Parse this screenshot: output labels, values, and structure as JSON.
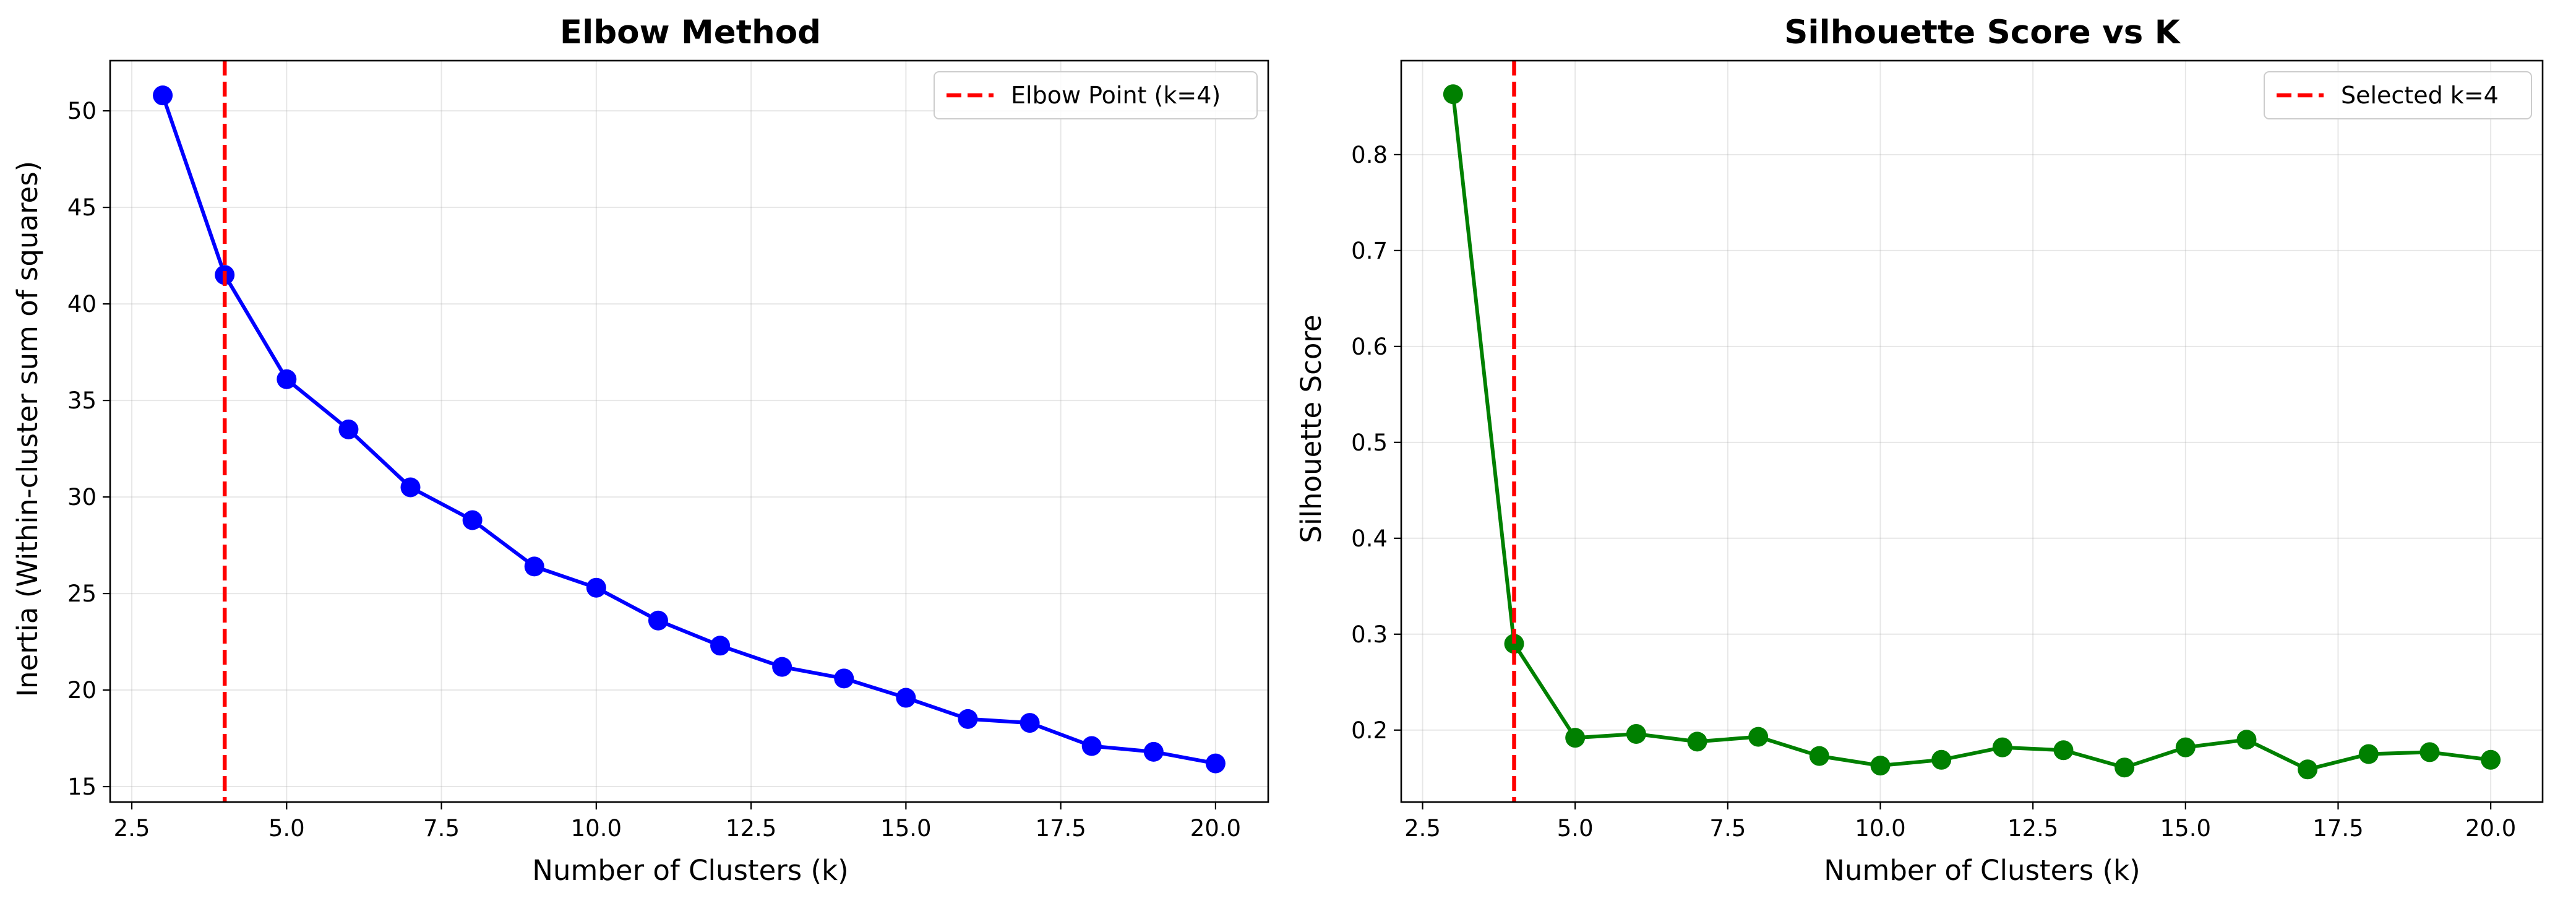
{
  "chart_data": [
    {
      "type": "line",
      "title": "Elbow Method",
      "xlabel": "Number of Clusters (k)",
      "ylabel": "Inertia (Within-cluster sum of squares)",
      "xlim": [
        2.15,
        20.85
      ],
      "ylim": [
        14.2,
        52.6
      ],
      "xticks": [
        2.5,
        5.0,
        7.5,
        10.0,
        12.5,
        15.0,
        17.5,
        20.0
      ],
      "xtick_labels": [
        "2.5",
        "5.0",
        "7.5",
        "10.0",
        "12.5",
        "15.0",
        "17.5",
        "20.0"
      ],
      "yticks": [
        15,
        20,
        25,
        30,
        35,
        40,
        45,
        50
      ],
      "ytick_labels": [
        "15",
        "20",
        "25",
        "30",
        "35",
        "40",
        "45",
        "50"
      ],
      "grid": true,
      "legend_position": "top-right",
      "series": [
        {
          "color": "#0000ff",
          "x": [
            3,
            4,
            5,
            6,
            7,
            8,
            9,
            10,
            11,
            12,
            13,
            14,
            15,
            16,
            17,
            18,
            19,
            20
          ],
          "y": [
            50.8,
            41.5,
            36.1,
            33.5,
            30.5,
            28.8,
            26.4,
            25.3,
            23.6,
            22.3,
            21.2,
            20.6,
            19.6,
            18.5,
            18.3,
            17.1,
            16.8,
            16.2
          ]
        }
      ],
      "vline": {
        "x": 4,
        "label": "Elbow Point (k=4)",
        "color": "#ff0000"
      }
    },
    {
      "type": "line",
      "title": "Silhouette Score vs K",
      "xlabel": "Number of Clusters (k)",
      "ylabel": "Silhouette Score",
      "xlim": [
        2.15,
        20.85
      ],
      "ylim": [
        0.125,
        0.898
      ],
      "xticks": [
        2.5,
        5.0,
        7.5,
        10.0,
        12.5,
        15.0,
        17.5,
        20.0
      ],
      "xtick_labels": [
        "2.5",
        "5.0",
        "7.5",
        "10.0",
        "12.5",
        "15.0",
        "17.5",
        "20.0"
      ],
      "yticks": [
        0.2,
        0.3,
        0.4,
        0.5,
        0.6,
        0.7,
        0.8
      ],
      "ytick_labels": [
        "0.2",
        "0.3",
        "0.4",
        "0.5",
        "0.6",
        "0.7",
        "0.8"
      ],
      "grid": true,
      "legend_position": "top-right",
      "series": [
        {
          "color": "#008000",
          "x": [
            3,
            4,
            5,
            6,
            7,
            8,
            9,
            10,
            11,
            12,
            13,
            14,
            15,
            16,
            17,
            18,
            19,
            20
          ],
          "y": [
            0.863,
            0.29,
            0.192,
            0.196,
            0.188,
            0.193,
            0.173,
            0.163,
            0.169,
            0.182,
            0.179,
            0.161,
            0.182,
            0.19,
            0.159,
            0.175,
            0.177,
            0.169
          ]
        }
      ],
      "vline": {
        "x": 4,
        "label": "Selected k=4",
        "color": "#ff0000"
      }
    }
  ]
}
